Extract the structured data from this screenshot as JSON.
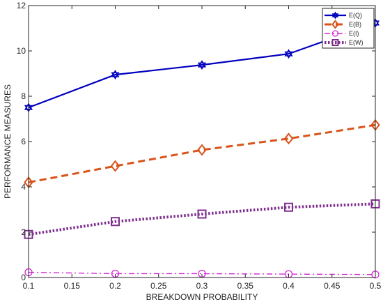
{
  "chart_data": {
    "type": "line",
    "title": "",
    "xlabel": "BREAKDOWN PROBABILITY",
    "ylabel": "PERFORMANCE MEASURES",
    "xlim": [
      0.1,
      0.5
    ],
    "ylim": [
      0,
      12
    ],
    "grid": false,
    "legend_position": "top-right",
    "x": [
      0.1,
      0.2,
      0.3,
      0.4,
      0.5
    ],
    "x_ticks": [
      "0.1",
      "0.15",
      "0.2",
      "0.25",
      "0.3",
      "0.35",
      "0.4",
      "0.45",
      "0.5"
    ],
    "x_tick_values": [
      0.1,
      0.15,
      0.2,
      0.25,
      0.3,
      0.35,
      0.4,
      0.45,
      0.5
    ],
    "y_ticks": [
      "0",
      "2",
      "4",
      "6",
      "8",
      "10",
      "12"
    ],
    "y_tick_values": [
      0,
      2,
      4,
      6,
      8,
      10,
      12
    ],
    "series": [
      {
        "name": "E(Q)",
        "values": [
          7.5,
          8.95,
          9.38,
          9.87,
          11.23
        ],
        "color": "#0000bf",
        "line_style": "solid",
        "marker": "hexagram"
      },
      {
        "name": "E(B)",
        "values": [
          4.2,
          4.92,
          5.63,
          6.13,
          6.73
        ],
        "color": "#d95319",
        "line_style": "dashed",
        "marker": "diamond"
      },
      {
        "name": "E(I)",
        "values": [
          0.23,
          0.17,
          0.17,
          0.15,
          0.13
        ],
        "color": "#d52ad5",
        "line_style": "dashdot",
        "marker": "circle"
      },
      {
        "name": "E(W)",
        "values": [
          1.9,
          2.47,
          2.8,
          3.1,
          3.25
        ],
        "color": "#7e2f8e",
        "line_style": "dotted",
        "marker": "square"
      }
    ]
  }
}
